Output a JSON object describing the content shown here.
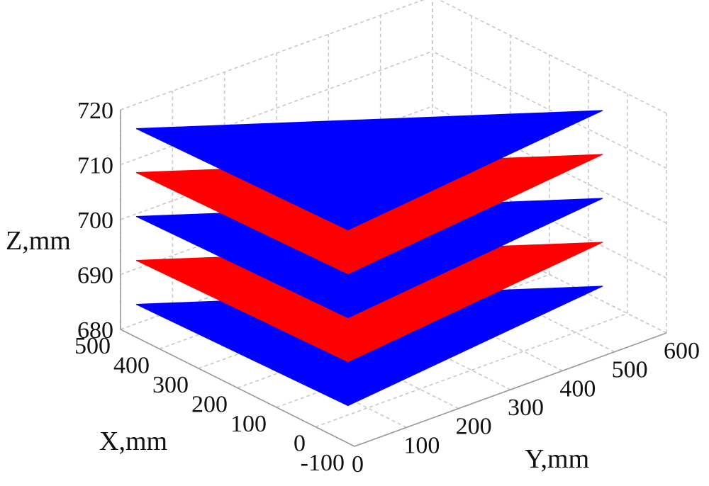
{
  "chart_data": {
    "type": "surface3d",
    "title": "",
    "xlabel": "X,mm",
    "ylabel": "Y,mm",
    "zlabel": "Z,mm",
    "xlim": [
      -100,
      500
    ],
    "ylim": [
      0,
      600
    ],
    "zlim": [
      680,
      720
    ],
    "x_ticks": [
      "-100",
      "0",
      "100",
      "200",
      "300",
      "400",
      "500"
    ],
    "y_ticks": [
      "0",
      "100",
      "200",
      "300",
      "400",
      "500",
      "600"
    ],
    "z_ticks": [
      "680",
      "690",
      "700",
      "710",
      "720"
    ],
    "grid": true,
    "series": [
      {
        "z": 686,
        "color": "#0000ff",
        "vertices": [
          {
            "x": 460,
            "y": 0
          },
          {
            "x": -70,
            "y": 10
          },
          {
            "x": 10,
            "y": 560
          }
        ]
      },
      {
        "z": 694,
        "color": "#ff0000",
        "vertices": [
          {
            "x": 460,
            "y": 0
          },
          {
            "x": -70,
            "y": 10
          },
          {
            "x": 10,
            "y": 560
          }
        ]
      },
      {
        "z": 702,
        "color": "#0000ff",
        "vertices": [
          {
            "x": 460,
            "y": 0
          },
          {
            "x": -70,
            "y": 10
          },
          {
            "x": 10,
            "y": 560
          }
        ]
      },
      {
        "z": 710,
        "color": "#ff0000",
        "vertices": [
          {
            "x": 460,
            "y": 0
          },
          {
            "x": -70,
            "y": 10
          },
          {
            "x": 10,
            "y": 560
          }
        ]
      },
      {
        "z": 718,
        "color": "#0000ff",
        "vertices": [
          {
            "x": 460,
            "y": 0
          },
          {
            "x": -70,
            "y": 10
          },
          {
            "x": 10,
            "y": 560
          }
        ]
      }
    ]
  }
}
